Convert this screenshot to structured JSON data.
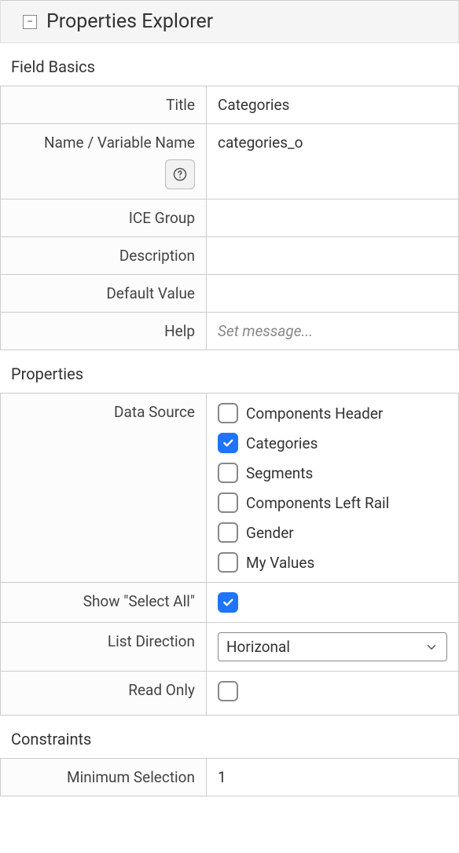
{
  "panel": {
    "title": "Properties Explorer"
  },
  "sections": {
    "field_basics": {
      "title": "Field Basics"
    },
    "properties": {
      "title": "Properties"
    },
    "constraints": {
      "title": "Constraints"
    }
  },
  "labels": {
    "title": "Title",
    "name": "Name / Variable Name",
    "ice_group": "ICE Group",
    "description": "Description",
    "default_value": "Default Value",
    "help": "Help",
    "data_source": "Data Source",
    "show_select_all": "Show \"Select All\"",
    "list_direction": "List Direction",
    "read_only": "Read Only",
    "min_selection": "Minimum Selection"
  },
  "values": {
    "title": "Categories",
    "name": "categories_o",
    "ice_group": "",
    "description": "",
    "default_value": "",
    "help_placeholder": "Set message...",
    "list_direction": "Horizonal",
    "min_selection": "1"
  },
  "data_source": {
    "options": [
      {
        "label": "Components Header",
        "checked": false
      },
      {
        "label": "Categories",
        "checked": true
      },
      {
        "label": "Segments",
        "checked": false
      },
      {
        "label": "Components Left Rail",
        "checked": false
      },
      {
        "label": "Gender",
        "checked": false
      },
      {
        "label": "My Values",
        "checked": false
      }
    ]
  },
  "show_select_all": {
    "checked": true
  },
  "read_only": {
    "checked": false
  },
  "colors": {
    "accent": "#1e74fd",
    "border": "#cccccc",
    "header_bg": "#f5f5f5",
    "text": "#333333",
    "placeholder": "#888888"
  }
}
